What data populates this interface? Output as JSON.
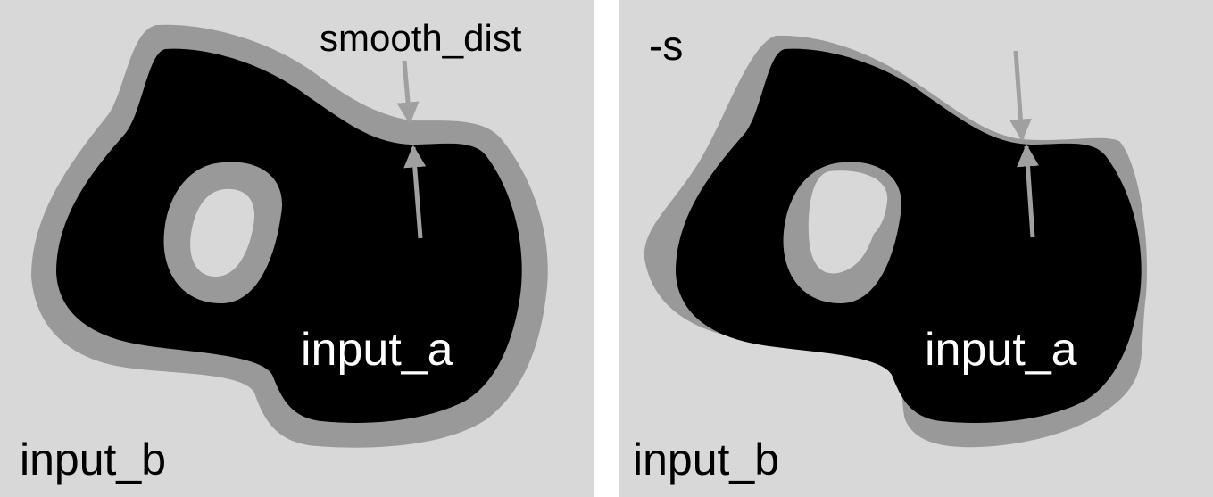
{
  "panels": [
    {
      "input_a_label": "input_a",
      "input_b_label": "input_b",
      "annotation": "smooth_dist"
    },
    {
      "flag_label": "-s",
      "input_a_label": "input_a",
      "input_b_label": "input_b"
    }
  ],
  "colors": {
    "background": "#d8d8d8",
    "input_a_fill": "#000000",
    "smoothing_band": "#999999",
    "arrows": "#a0a0a0"
  }
}
